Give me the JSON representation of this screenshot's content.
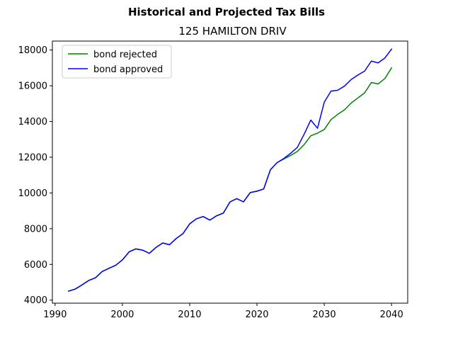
{
  "chart_data": {
    "type": "line",
    "title": "Historical and Projected Tax Bills",
    "subtitle": "125 HAMILTON DRIV",
    "xlabel": "",
    "ylabel": "",
    "xlim": [
      1989.6,
      2042.4
    ],
    "ylim": [
      3830,
      18500
    ],
    "xticks": [
      1990,
      2000,
      2010,
      2020,
      2030,
      2040
    ],
    "yticks": [
      4000,
      6000,
      8000,
      10000,
      12000,
      14000,
      16000,
      18000
    ],
    "grid": false,
    "legend_position": "top-left",
    "x": [
      1992,
      1993,
      1994,
      1995,
      1996,
      1997,
      1998,
      1999,
      2000,
      2001,
      2002,
      2003,
      2004,
      2005,
      2006,
      2007,
      2008,
      2009,
      2010,
      2011,
      2012,
      2013,
      2014,
      2015,
      2016,
      2017,
      2018,
      2019,
      2020,
      2021,
      2022,
      2023,
      2024,
      2025,
      2026,
      2027,
      2028,
      2029,
      2030,
      2031,
      2032,
      2033,
      2034,
      2035,
      2036,
      2037,
      2038,
      2039,
      2040
    ],
    "series": [
      {
        "name": "bond rejected",
        "color": "#008000",
        "values": [
          4500,
          4620,
          4850,
          5100,
          5250,
          5600,
          5780,
          5950,
          6250,
          6700,
          6870,
          6800,
          6620,
          6950,
          7200,
          7100,
          7450,
          7720,
          8270,
          8550,
          8680,
          8480,
          8720,
          8870,
          9500,
          9680,
          9500,
          10020,
          10100,
          10220,
          11300,
          11700,
          11900,
          12100,
          12320,
          12700,
          13200,
          13350,
          13550,
          14100,
          14400,
          14650,
          15030,
          15320,
          15600,
          16180,
          16100,
          16400,
          17000
        ]
      },
      {
        "name": "bond approved",
        "color": "#0000ff",
        "values": [
          4500,
          4620,
          4850,
          5100,
          5250,
          5600,
          5780,
          5950,
          6250,
          6700,
          6870,
          6800,
          6620,
          6950,
          7200,
          7100,
          7450,
          7720,
          8270,
          8550,
          8680,
          8480,
          8720,
          8870,
          9500,
          9680,
          9500,
          10020,
          10100,
          10220,
          11300,
          11700,
          11930,
          12220,
          12550,
          13280,
          14080,
          13620,
          15080,
          15700,
          15750,
          15980,
          16350,
          16600,
          16820,
          17380,
          17280,
          17550,
          18050
        ]
      }
    ]
  }
}
